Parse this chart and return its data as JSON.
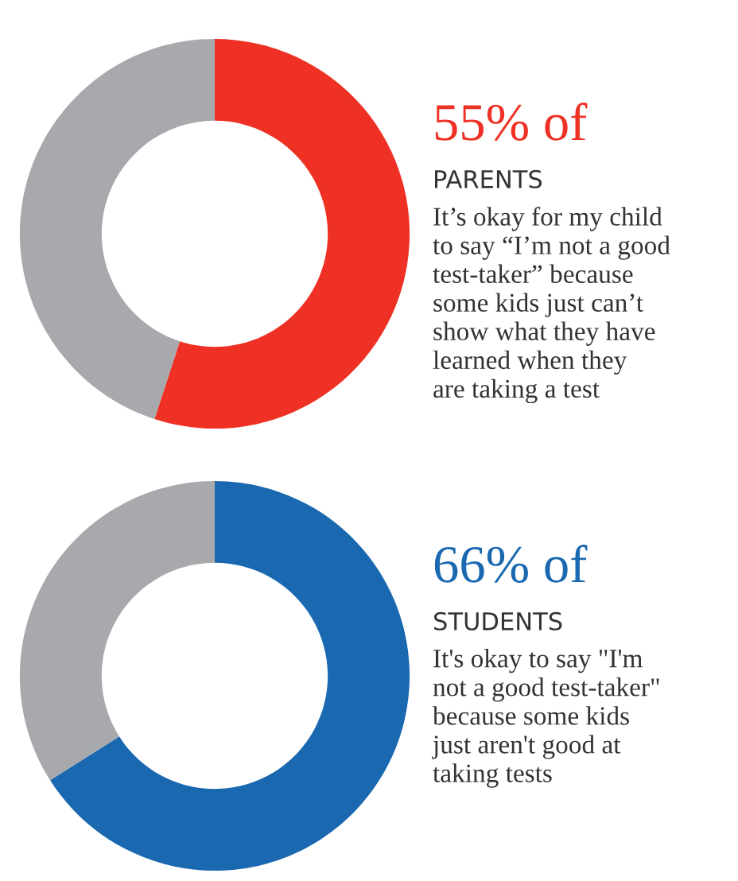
{
  "chart_data": [
    {
      "type": "donut",
      "title": "55% of",
      "subtitle": "PARENTS",
      "categories": [
        null,
        null
      ],
      "values": [
        55,
        45
      ],
      "colors": [
        "#ee3124",
        "#a7a9ac"
      ],
      "annotations": [
        "It’s okay for my child\nto say “I’m not a good\ntest-taker” because\nsome kids just can’t\nshow what they have\nlearned when they\nare taking a test"
      ]
    },
    {
      "type": "donut",
      "title": "66% of",
      "subtitle": "STUDENTS",
      "categories": [
        null,
        null
      ],
      "values": [
        66,
        34
      ],
      "colors": [
        "#1a68b0",
        "#a7a9ac"
      ],
      "annotations": [
        "It's okay to say \"I'm\nnot a good test-taker\"\nbecause some kids\njust aren't good at\ntaking tests"
      ]
    }
  ]
}
